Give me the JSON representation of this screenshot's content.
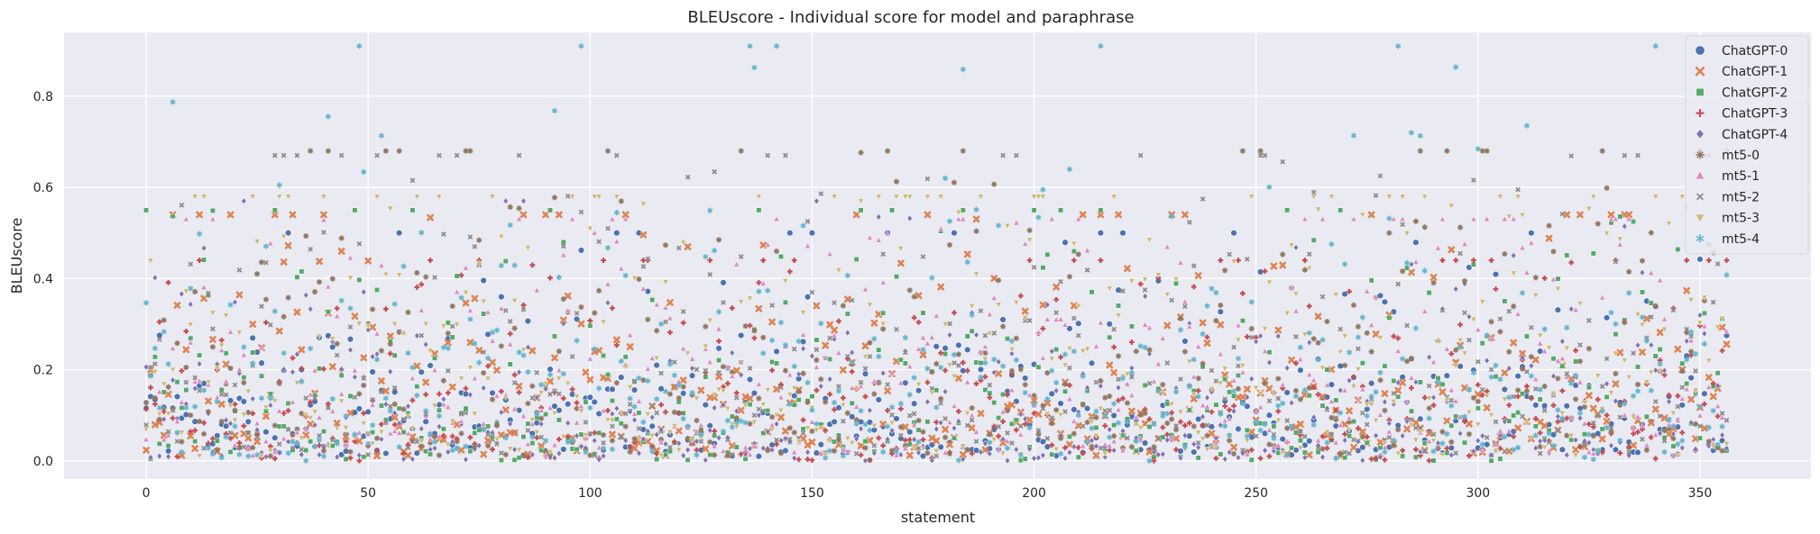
{
  "chart_data": {
    "type": "scatter",
    "title": "BLEUscore - Individual score for model and paraphrase",
    "xlabel": "statement",
    "ylabel": "BLEUscore",
    "xlim": [
      -18.5,
      375
    ],
    "ylim": [
      -0.04,
      0.94
    ],
    "x_ticks": [
      0,
      50,
      100,
      150,
      200,
      250,
      300,
      350
    ],
    "y_ticks": [
      0.0,
      0.2,
      0.4,
      0.6,
      0.8
    ],
    "y_tick_labels": [
      "0.0",
      "0.2",
      "0.4",
      "0.6",
      "0.8"
    ],
    "grid": true,
    "legend_position": "top-right",
    "n_statements": 357,
    "series": [
      {
        "name": "ChatGPT-0",
        "color": "#4c72b0",
        "marker": "circle",
        "seed": 11,
        "profile": [
          0.01,
          0.5,
          0.15
        ]
      },
      {
        "name": "ChatGPT-1",
        "color": "#dd8452",
        "marker": "x",
        "seed": 23,
        "profile": [
          0.01,
          0.54,
          0.2
        ]
      },
      {
        "name": "ChatGPT-2",
        "color": "#55a868",
        "marker": "square",
        "seed": 37,
        "profile": [
          0.0,
          0.55,
          0.17
        ]
      },
      {
        "name": "ChatGPT-3",
        "color": "#c44e52",
        "marker": "plus",
        "seed": 41,
        "profile": [
          0.0,
          0.44,
          0.16
        ]
      },
      {
        "name": "ChatGPT-4",
        "color": "#8172b3",
        "marker": "diamond",
        "seed": 53,
        "profile": [
          0.0,
          0.57,
          0.12
        ]
      },
      {
        "name": "mt5-0",
        "color": "#937860",
        "marker": "star",
        "seed": 67,
        "profile": [
          0.01,
          0.68,
          0.22
        ]
      },
      {
        "name": "mt5-1",
        "color": "#da8bc3",
        "marker": "triangle-up",
        "seed": 71,
        "profile": [
          0.01,
          0.53,
          0.22
        ]
      },
      {
        "name": "mt5-2",
        "color": "#8c8c8c",
        "marker": "thin-x",
        "seed": 83,
        "profile": [
          0.01,
          0.67,
          0.24
        ]
      },
      {
        "name": "mt5-3",
        "color": "#ccb974",
        "marker": "triangle-down",
        "seed": 97,
        "profile": [
          0.01,
          0.58,
          0.25
        ]
      },
      {
        "name": "mt5-4",
        "color": "#64b5cd",
        "marker": "asterisk",
        "seed": 101,
        "profile": [
          0.0,
          0.91,
          0.24
        ]
      }
    ]
  }
}
